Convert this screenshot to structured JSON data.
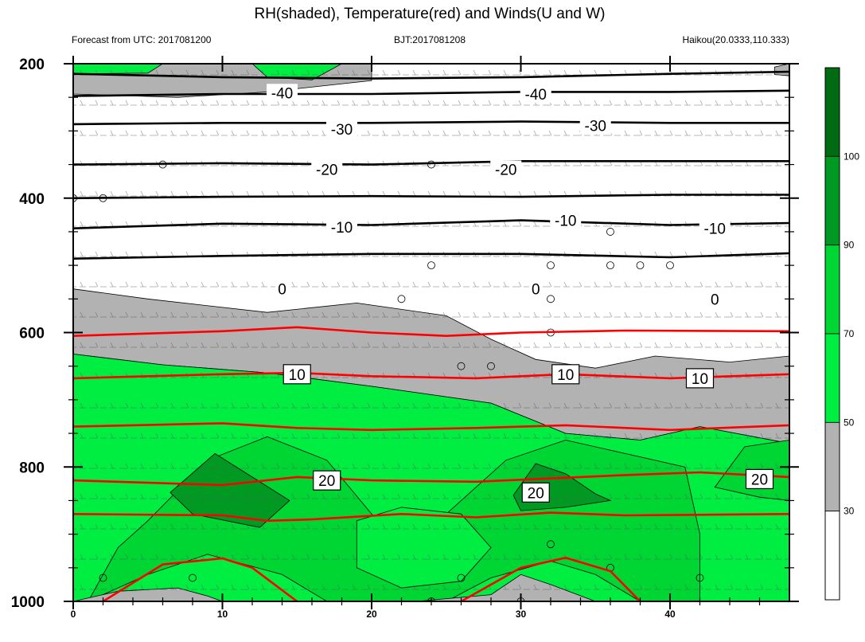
{
  "chart_data": {
    "type": "heatmap",
    "title": "RH(shaded), Temperature(red) and Winds(U and W)",
    "subtitle_left": "Forecast from UTC: 2017081200",
    "subtitle_center": "BJT:2017081208",
    "subtitle_right": "Haikou(20.0333,110.333)",
    "x_range": [
      0,
      48
    ],
    "y_range": [
      200,
      1000
    ],
    "y_reversed": true,
    "x_ticks": [
      "0",
      "10",
      "20",
      "30",
      "40"
    ],
    "y_ticks": [
      "200",
      "400",
      "600",
      "800",
      "1000"
    ],
    "colorbar": {
      "levels": [
        "30",
        "50",
        "70",
        "90",
        "100"
      ],
      "colors": [
        "#ffffff",
        "#b2b2b2",
        "#00ee42",
        "#00d633",
        "#009a22",
        "#006b12"
      ]
    },
    "rh_regions": [
      {
        "fill": "#b2b2b2",
        "points": [
          [
            0,
            200
          ],
          [
            20,
            200
          ],
          [
            20,
            225
          ],
          [
            13,
            242
          ],
          [
            7,
            250
          ],
          [
            0,
            245
          ]
        ]
      },
      {
        "fill": "#00ee42",
        "points": [
          [
            0,
            200
          ],
          [
            6,
            200
          ],
          [
            5,
            214
          ],
          [
            0,
            215
          ]
        ]
      },
      {
        "fill": "#00ee42",
        "points": [
          [
            12,
            200
          ],
          [
            18,
            200
          ],
          [
            16,
            224
          ],
          [
            13,
            220
          ]
        ]
      },
      {
        "fill": "#b2b2b2",
        "points": [
          [
            48,
            200
          ],
          [
            48,
            218
          ],
          [
            47,
            216
          ],
          [
            47,
            205
          ]
        ]
      },
      {
        "fill": "#b2b2b2",
        "points": [
          [
            0,
            535
          ],
          [
            5,
            550
          ],
          [
            13,
            570
          ],
          [
            19,
            556
          ],
          [
            25,
            575
          ],
          [
            28,
            610
          ],
          [
            31,
            640
          ],
          [
            35,
            653
          ],
          [
            39,
            635
          ],
          [
            44,
            644
          ],
          [
            48,
            635
          ],
          [
            48,
            765
          ],
          [
            42,
            740
          ],
          [
            38,
            760
          ],
          [
            33,
            750
          ],
          [
            28,
            705
          ],
          [
            20,
            680
          ],
          [
            13,
            660
          ],
          [
            6,
            648
          ],
          [
            0,
            632
          ]
        ]
      },
      {
        "fill": "#00ee42",
        "points": [
          [
            0,
            632
          ],
          [
            6,
            648
          ],
          [
            13,
            660
          ],
          [
            20,
            680
          ],
          [
            28,
            705
          ],
          [
            33,
            750
          ],
          [
            38,
            760
          ],
          [
            42,
            740
          ],
          [
            48,
            765
          ],
          [
            48,
            1000
          ],
          [
            0,
            1000
          ]
        ]
      },
      {
        "fill": "#00d633",
        "points": [
          [
            5,
            880
          ],
          [
            9,
            790
          ],
          [
            13,
            755
          ],
          [
            17,
            790
          ],
          [
            20,
            870
          ],
          [
            22,
            920
          ],
          [
            25,
            870
          ],
          [
            29,
            790
          ],
          [
            33,
            760
          ],
          [
            37,
            780
          ],
          [
            41,
            800
          ],
          [
            42,
            900
          ],
          [
            42,
            1000
          ],
          [
            38,
            1000
          ],
          [
            35,
            960
          ],
          [
            32,
            940
          ],
          [
            28,
            965
          ],
          [
            25,
            1000
          ],
          [
            17,
            1000
          ],
          [
            14,
            960
          ],
          [
            9,
            930
          ],
          [
            5,
            960
          ],
          [
            1,
            1000
          ],
          [
            3,
            920
          ]
        ]
      },
      {
        "fill": "#00ee42",
        "points": [
          [
            19,
            880
          ],
          [
            22,
            860
          ],
          [
            26,
            870
          ],
          [
            28,
            920
          ],
          [
            26,
            970
          ],
          [
            22,
            980
          ],
          [
            19,
            950
          ]
        ]
      },
      {
        "fill": "#00d633",
        "points": [
          [
            43,
            830
          ],
          [
            45,
            770
          ],
          [
            48,
            760
          ],
          [
            48,
            850
          ],
          [
            46,
            845
          ]
        ]
      },
      {
        "fill": "#009a22",
        "points": [
          [
            6.5,
            838
          ],
          [
            9.5,
            780
          ],
          [
            12,
            815
          ],
          [
            14.5,
            850
          ],
          [
            12.5,
            890
          ],
          [
            8,
            870
          ]
        ]
      },
      {
        "fill": "#009a22",
        "points": [
          [
            29.5,
            842
          ],
          [
            31,
            795
          ],
          [
            33,
            810
          ],
          [
            35,
            840
          ],
          [
            36,
            850
          ],
          [
            33,
            860
          ],
          [
            30,
            865
          ]
        ]
      },
      {
        "fill": "#b2b2b2",
        "points": [
          [
            0,
            1000
          ],
          [
            3,
            985
          ],
          [
            7,
            980
          ],
          [
            9,
            992
          ],
          [
            10,
            1000
          ]
        ]
      },
      {
        "fill": "#b2b2b2",
        "points": [
          [
            23,
            1000
          ],
          [
            28,
            990
          ],
          [
            30,
            960
          ],
          [
            32,
            975
          ],
          [
            35,
            1000
          ]
        ]
      }
    ],
    "temperature_lines": [
      {
        "color": "#ff0000",
        "points": [
          [
            0,
            605
          ],
          [
            10,
            598
          ],
          [
            15,
            592
          ],
          [
            20,
            600
          ],
          [
            25,
            605
          ],
          [
            30,
            600
          ],
          [
            37,
            597
          ],
          [
            48,
            598
          ]
        ]
      },
      {
        "color": "#ff0000",
        "points": [
          [
            0,
            668
          ],
          [
            10,
            662
          ],
          [
            15,
            660
          ],
          [
            20,
            665
          ],
          [
            27,
            668
          ],
          [
            33,
            662
          ],
          [
            40,
            668
          ],
          [
            48,
            662
          ]
        ]
      },
      {
        "color": "#ff0000",
        "points": [
          [
            0,
            740
          ],
          [
            10,
            735
          ],
          [
            15,
            742
          ],
          [
            20,
            745
          ],
          [
            27,
            742
          ],
          [
            33,
            738
          ],
          [
            40,
            745
          ],
          [
            48,
            738
          ]
        ]
      },
      {
        "color": "#ff0000",
        "points": [
          [
            0,
            820
          ],
          [
            10,
            827
          ],
          [
            15,
            815
          ],
          [
            20,
            820
          ],
          [
            27,
            822
          ],
          [
            32,
            817
          ],
          [
            37,
            812
          ],
          [
            42,
            808
          ],
          [
            48,
            815
          ]
        ]
      },
      {
        "color": "#ff0000",
        "points": [
          [
            0,
            870
          ],
          [
            10,
            872
          ],
          [
            13,
            880
          ],
          [
            16,
            878
          ],
          [
            22,
            870
          ],
          [
            27,
            875
          ],
          [
            32,
            868
          ],
          [
            37,
            872
          ],
          [
            48,
            870
          ]
        ]
      },
      {
        "color": "#ff0000",
        "points": [
          [
            2,
            1000
          ],
          [
            6,
            945
          ],
          [
            10,
            936
          ],
          [
            12,
            950
          ],
          [
            15,
            1000
          ]
        ]
      },
      {
        "color": "#ff0000",
        "points": [
          [
            26,
            1000
          ],
          [
            30,
            950
          ],
          [
            33,
            935
          ],
          [
            36,
            955
          ],
          [
            38,
            1000
          ]
        ]
      }
    ],
    "temperature_labels": [
      {
        "x": 15,
        "y": 662,
        "text": "10"
      },
      {
        "x": 33,
        "y": 662,
        "text": "10"
      },
      {
        "x": 42,
        "y": 668,
        "text": "10"
      },
      {
        "x": 17,
        "y": 820,
        "text": "20"
      },
      {
        "x": 31,
        "y": 838,
        "text": "20"
      },
      {
        "x": 46,
        "y": 818,
        "text": "20"
      }
    ],
    "isotherm_lines": [
      {
        "points": [
          [
            0,
            215
          ],
          [
            10,
            220
          ],
          [
            20,
            222
          ],
          [
            30,
            220
          ],
          [
            40,
            215
          ],
          [
            48,
            212
          ]
        ]
      },
      {
        "points": [
          [
            0,
            248
          ],
          [
            10,
            245
          ],
          [
            20,
            245
          ],
          [
            30,
            242
          ],
          [
            40,
            242
          ],
          [
            48,
            240
          ]
        ]
      },
      {
        "points": [
          [
            0,
            290
          ],
          [
            10,
            288
          ],
          [
            20,
            288
          ],
          [
            30,
            286
          ],
          [
            40,
            288
          ],
          [
            48,
            288
          ]
        ]
      },
      {
        "points": [
          [
            0,
            350
          ],
          [
            10,
            348
          ],
          [
            20,
            350
          ],
          [
            30,
            345
          ],
          [
            40,
            345
          ],
          [
            48,
            345
          ]
        ]
      },
      {
        "points": [
          [
            0,
            400
          ],
          [
            10,
            398
          ],
          [
            20,
            397
          ],
          [
            30,
            398
          ],
          [
            40,
            395
          ],
          [
            48,
            395
          ]
        ]
      },
      {
        "points": [
          [
            0,
            445
          ],
          [
            10,
            438
          ],
          [
            20,
            440
          ],
          [
            30,
            433
          ],
          [
            40,
            440
          ],
          [
            48,
            437
          ]
        ]
      },
      {
        "points": [
          [
            0,
            490
          ],
          [
            10,
            486
          ],
          [
            20,
            483
          ],
          [
            30,
            483
          ],
          [
            40,
            488
          ],
          [
            48,
            482
          ]
        ]
      }
    ],
    "isotherm_labels": [
      {
        "x": 14,
        "y": 243,
        "text": "-40"
      },
      {
        "x": 31,
        "y": 245,
        "text": "-40"
      },
      {
        "x": 18,
        "y": 297,
        "text": "-30"
      },
      {
        "x": 35,
        "y": 292,
        "text": "-30"
      },
      {
        "x": 17,
        "y": 357,
        "text": "-20"
      },
      {
        "x": 29,
        "y": 357,
        "text": "-20"
      },
      {
        "x": 18,
        "y": 443,
        "text": "-10"
      },
      {
        "x": 33,
        "y": 433,
        "text": "-10"
      },
      {
        "x": 43,
        "y": 445,
        "text": "-10"
      },
      {
        "x": 14,
        "y": 535,
        "text": "0"
      },
      {
        "x": 31,
        "y": 535,
        "text": "0"
      },
      {
        "x": 43,
        "y": 550,
        "text": "0"
      }
    ],
    "calm_markers": [
      [
        6,
        350
      ],
      [
        24,
        350
      ],
      [
        0,
        400
      ],
      [
        2,
        400
      ],
      [
        36,
        450
      ],
      [
        24,
        500
      ],
      [
        32,
        500
      ],
      [
        36,
        500
      ],
      [
        38,
        500
      ],
      [
        40,
        500
      ],
      [
        22,
        550
      ],
      [
        32,
        550
      ],
      [
        32,
        600
      ],
      [
        26,
        650
      ],
      [
        28,
        650
      ],
      [
        32,
        915
      ],
      [
        36,
        950
      ],
      [
        2,
        965
      ],
      [
        8,
        965
      ],
      [
        26,
        965
      ],
      [
        42,
        965
      ],
      [
        24,
        1000
      ],
      [
        30,
        1000
      ]
    ]
  }
}
